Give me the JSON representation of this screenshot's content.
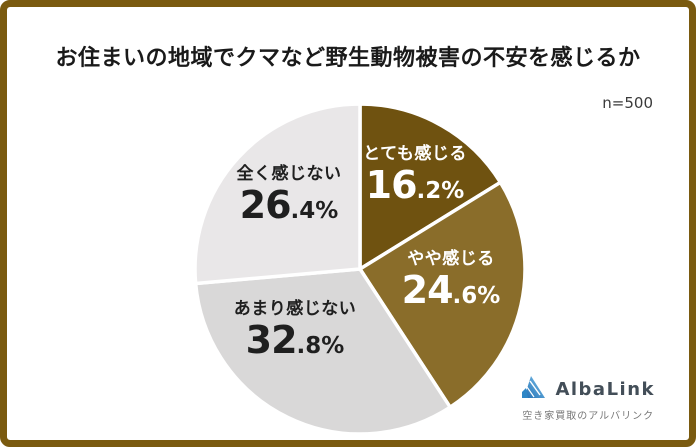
{
  "frame": {
    "border_color": "#7a5a0f",
    "background": "#ffffff"
  },
  "header": {
    "title": "お住まいの地域でクマなど野生動物被害の不安を感じるか",
    "sample_size": "n=500"
  },
  "chart_data": {
    "type": "pie",
    "title": "お住まいの地域でクマなど野生動物被害の不安を感じるか",
    "sample_note": "n=500",
    "start_angle_deg": 0,
    "direction": "clockwise",
    "separator_color": "#ffffff",
    "segments": [
      {
        "label": "とても感じる",
        "value": 16.2,
        "color": "#6f5210",
        "text_color": "#ffffff"
      },
      {
        "label": "やや感じる",
        "value": 24.6,
        "color": "#8a6d2a",
        "text_color": "#ffffff"
      },
      {
        "label": "あまり感じない",
        "value": 32.8,
        "color": "#d9d8d8",
        "text_color": "#1f1f1f"
      },
      {
        "label": "全く感じない",
        "value": 26.4,
        "color": "#e9e7e8",
        "text_color": "#1f1f1f"
      }
    ]
  },
  "footer": {
    "logo_text": "AlbaLink",
    "logo_subtext": "空き家買取のアルバリンク",
    "logo_text_color": "#434e58",
    "logo_blue_dark": "#1f6db3",
    "logo_blue_light": "#7fc4ec"
  }
}
